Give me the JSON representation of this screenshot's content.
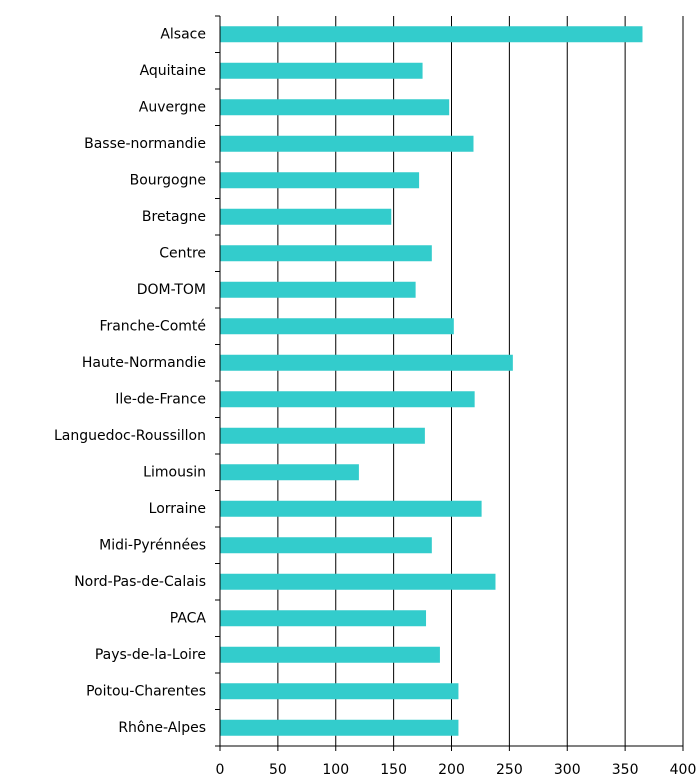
{
  "chart_data": {
    "type": "barh",
    "categories": [
      "Alsace",
      "Aquitaine",
      "Auvergne",
      "Basse-normandie",
      "Bourgogne",
      "Bretagne",
      "Centre",
      "DOM-TOM",
      "Franche-Comté",
      "Haute-Normandie",
      "Ile-de-France",
      "Languedoc-Roussillon",
      "Limousin",
      "Lorraine",
      "Midi-Pyrénnées",
      "Nord-Pas-de-Calais",
      "PACA",
      "Pays-de-la-Loire",
      "Poitou-Charentes",
      "Rhône-Alpes"
    ],
    "values": [
      365,
      175,
      198,
      219,
      172,
      148,
      183,
      169,
      202,
      253,
      220,
      177,
      120,
      226,
      183,
      238,
      178,
      190,
      206,
      206
    ],
    "color": "#33cccc",
    "xlim": [
      0,
      400
    ],
    "xticks": [
      0,
      50,
      100,
      150,
      200,
      250,
      300,
      350,
      400
    ],
    "grid": true
  }
}
